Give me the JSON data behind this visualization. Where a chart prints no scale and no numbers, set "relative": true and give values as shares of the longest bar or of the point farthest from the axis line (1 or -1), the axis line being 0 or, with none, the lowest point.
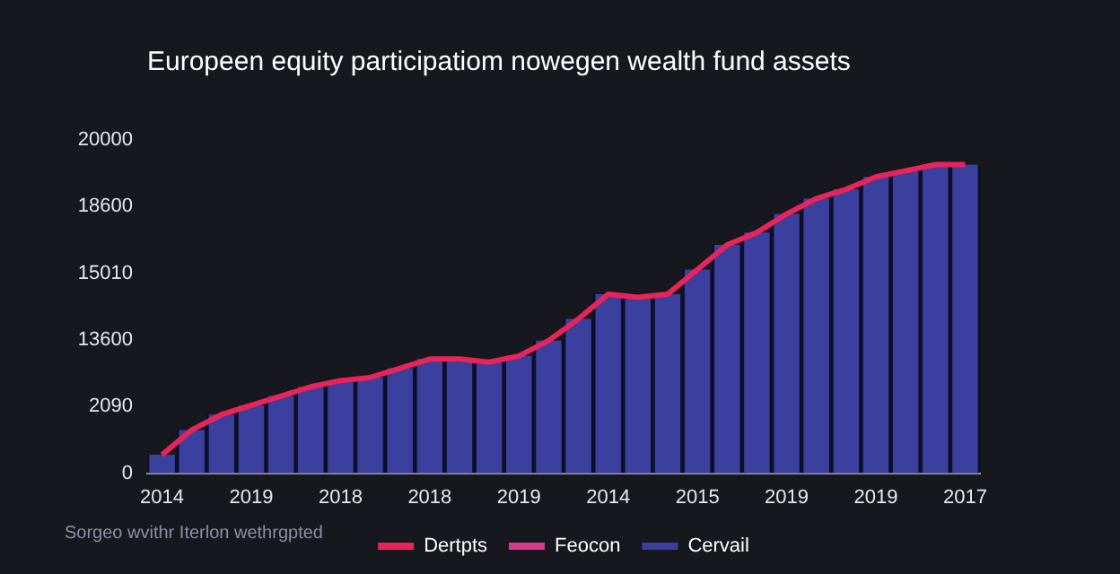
{
  "chart_data": {
    "type": "bar",
    "title": "Europeen equity participatiom nowegen wealth fund assets",
    "categories": [
      "2014",
      null,
      null,
      "2019",
      null,
      null,
      "2018",
      null,
      null,
      "2018",
      null,
      null,
      "2019",
      null,
      null,
      "2014",
      null,
      null,
      "2015",
      null,
      null,
      "2019",
      null,
      null,
      "2019",
      null,
      null,
      "2017"
    ],
    "relative": true,
    "series": [
      {
        "name": "Dertpts",
        "type": "line",
        "color": "#e8245a",
        "values": [
          0.06,
          0.14,
          0.19,
          0.22,
          0.25,
          0.28,
          0.3,
          0.31,
          0.34,
          0.37,
          0.37,
          0.36,
          0.38,
          0.43,
          0.5,
          0.58,
          0.57,
          0.58,
          0.66,
          0.74,
          0.78,
          0.84,
          0.89,
          0.92,
          0.96,
          0.98,
          1,
          1
        ]
      },
      {
        "name": "Feocon",
        "type": "line",
        "color": "#d63a8c",
        "values": [
          null,
          null,
          null,
          null,
          null,
          null,
          null,
          null,
          null,
          null,
          null,
          null,
          null,
          null,
          null,
          null,
          null,
          null,
          null,
          null,
          null,
          null,
          null,
          null,
          null,
          null,
          null,
          null
        ]
      },
      {
        "name": "Cervail",
        "color": "#3b3f9e",
        "values": [
          0.06,
          0.14,
          0.19,
          0.22,
          0.25,
          0.28,
          0.3,
          0.31,
          0.34,
          0.37,
          0.37,
          0.36,
          0.38,
          0.43,
          0.5,
          0.58,
          0.57,
          0.58,
          0.66,
          0.74,
          0.78,
          0.84,
          0.89,
          0.92,
          0.96,
          0.98,
          1,
          1
        ]
      }
    ],
    "legend": "bottom",
    "annotations": [
      "0",
      "2090",
      "13600",
      "15010",
      "18600",
      "20000",
      "Sorgeo wvithr Iterlon wethrgpted"
    ]
  }
}
